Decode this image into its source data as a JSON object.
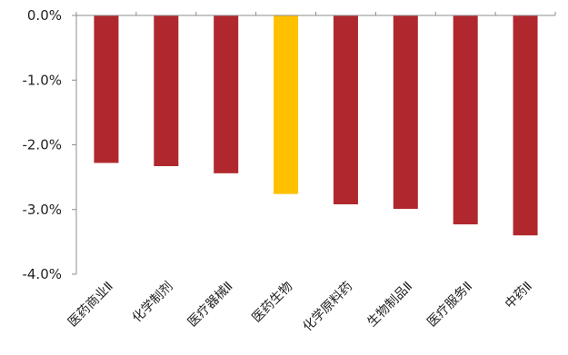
{
  "chart_data": {
    "type": "bar",
    "title": "",
    "xlabel": "",
    "ylabel": "",
    "categories": [
      "医药商业Ⅱ",
      "化学制剂",
      "医疗器械Ⅱ",
      "医药生物",
      "化学原料药",
      "生物制品Ⅱ",
      "医疗服务Ⅱ",
      "中药Ⅱ"
    ],
    "values": [
      -2.28,
      -2.33,
      -2.44,
      -2.76,
      -2.92,
      -2.99,
      -3.23,
      -3.4
    ],
    "ylim": [
      -4.0,
      0.0
    ],
    "yticks": [
      0.0,
      -1.0,
      -2.0,
      -3.0,
      -4.0
    ],
    "ytick_labels": [
      "0.0%",
      "-1.0%",
      "-2.0%",
      "-3.0%",
      "-4.0%"
    ],
    "grid": false,
    "colors": {
      "default": "#b0282e",
      "highlight": "#ffc000",
      "highlight_index": 3
    }
  }
}
